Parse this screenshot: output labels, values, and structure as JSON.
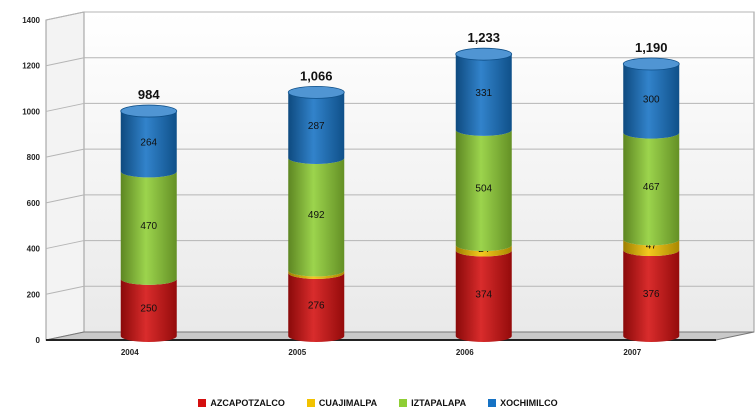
{
  "chart_data": {
    "type": "bar",
    "stacked": true,
    "title": "",
    "xlabel": "",
    "ylabel": "",
    "categories": [
      "2004",
      "2005",
      "2006",
      "2007"
    ],
    "ylim": [
      0,
      1400
    ],
    "yticks": [
      0,
      200,
      400,
      600,
      800,
      1000,
      1200,
      1400
    ],
    "ytick_labels": [
      "0",
      "200",
      "400",
      "600",
      "800",
      "1000",
      "1200",
      "1400"
    ],
    "grid": true,
    "legend": "bottom",
    "series": [
      {
        "name": "AZCAPOTZALCO",
        "color": "#d40f0f",
        "values": [
          250,
          276,
          374,
          376
        ],
        "labels": [
          "250",
          "276",
          "374",
          "376"
        ]
      },
      {
        "name": "CUAJIMALPA",
        "color": "#f2c200",
        "values": [
          0,
          11,
          24,
          47
        ],
        "labels": [
          "",
          "11",
          "24",
          "47"
        ]
      },
      {
        "name": "IZTAPALAPA",
        "color": "#8fce35",
        "values": [
          470,
          492,
          504,
          467
        ],
        "labels": [
          "470",
          "492",
          "504",
          "467"
        ]
      },
      {
        "name": "XOCHIMILCO",
        "color": "#1672c4",
        "values": [
          264,
          287,
          331,
          300
        ],
        "labels": [
          "264",
          "287",
          "331",
          "300"
        ]
      }
    ],
    "totals": [
      984,
      1066,
      1233,
      1190
    ],
    "total_labels": [
      "984",
      "1,066",
      "1,233",
      "1,190"
    ]
  }
}
